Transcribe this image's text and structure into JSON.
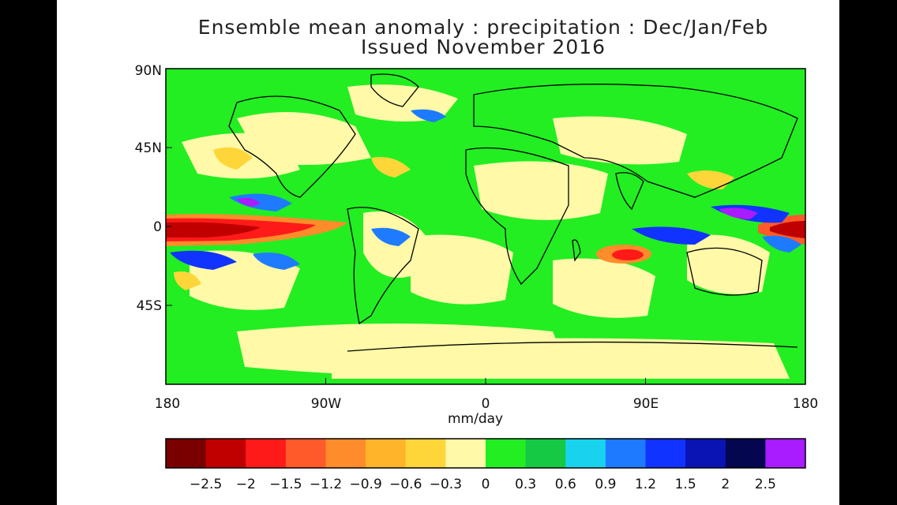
{
  "title": {
    "line1": "Ensemble mean anomaly : precipitation : Dec/Jan/Feb",
    "line2": "Issued November 2016"
  },
  "axes": {
    "lat_labels": [
      "90N",
      "45N",
      "0",
      "45S"
    ],
    "lon_labels": [
      "180",
      "90W",
      "0",
      "90E",
      "180"
    ],
    "units": "mm/day"
  },
  "colorbar": {
    "labels": [
      "-2.5",
      "-2",
      "-1.5",
      "-1.2",
      "-0.9",
      "-0.6",
      "-0.3",
      "0",
      "0.3",
      "0.6",
      "0.9",
      "1.2",
      "1.5",
      "2",
      "2.5"
    ],
    "colors": [
      "#7a0000",
      "#c00000",
      "#ff1a1a",
      "#ff5a2a",
      "#ff8c2a",
      "#ffb42a",
      "#ffd63a",
      "#fff9a8",
      "#22ee22",
      "#15c944",
      "#19d3ee",
      "#1e7bff",
      "#1133ff",
      "#0a14b4",
      "#040650",
      "#a81cff"
    ]
  },
  "colors": {
    "land_outline": "#000000",
    "background_anomaly": "#22ee22"
  }
}
